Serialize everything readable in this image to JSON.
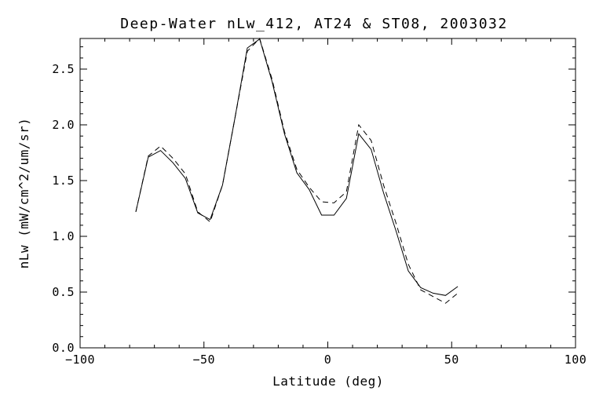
{
  "figure": {
    "background": "#ffffff",
    "axis_color": "#000000",
    "line_color": "#000000"
  },
  "chart_data": {
    "type": "line",
    "title": "Deep-Water nLw_412, AT24 & ST08, 2003032",
    "xlabel": "Latitude (deg)",
    "ylabel": "nLw (mW/cm^2/um/sr)",
    "xlim": [
      -100,
      100
    ],
    "ylim": [
      0,
      2.775
    ],
    "grid": false,
    "legend": "none",
    "x_major_ticks": [
      -100,
      -50,
      0,
      50,
      100
    ],
    "x_tick_labels": [
      "−100",
      "−50",
      "0",
      "50",
      "100"
    ],
    "x_minor_interval": 10,
    "y_major_ticks": [
      0.0,
      0.5,
      1.0,
      1.5,
      2.0,
      2.5
    ],
    "y_tick_labels": [
      "0.0",
      "0.5",
      "1.0",
      "1.5",
      "2.0",
      "2.5"
    ],
    "y_minor_interval": 0.1,
    "x": [
      -77.5,
      -72.5,
      -67.5,
      -62.5,
      -57.5,
      -52.5,
      -47.5,
      -42.5,
      -37.5,
      -32.5,
      -27.5,
      -22.5,
      -17.5,
      -12.5,
      -7.5,
      -2.5,
      2.5,
      7.5,
      12.5,
      17.5,
      22.5,
      27.5,
      32.5,
      37.5,
      42.5,
      47.5,
      52.5
    ],
    "series": [
      {
        "name": "AT24",
        "style": "solid",
        "values": [
          1.22,
          1.71,
          1.77,
          1.66,
          1.52,
          1.21,
          1.15,
          1.46,
          2.06,
          2.69,
          2.77,
          2.39,
          1.92,
          1.57,
          1.42,
          1.19,
          1.19,
          1.34,
          1.92,
          1.78,
          1.39,
          1.05,
          0.69,
          0.54,
          0.49,
          0.47,
          0.55
        ]
      },
      {
        "name": "ST08",
        "style": "dashed",
        "values": [
          1.22,
          1.72,
          1.81,
          1.7,
          1.56,
          1.22,
          1.13,
          1.46,
          2.06,
          2.66,
          2.775,
          2.41,
          1.94,
          1.6,
          1.44,
          1.31,
          1.3,
          1.4,
          2.0,
          1.86,
          1.46,
          1.12,
          0.75,
          0.52,
          0.46,
          0.4,
          0.49
        ]
      }
    ]
  }
}
